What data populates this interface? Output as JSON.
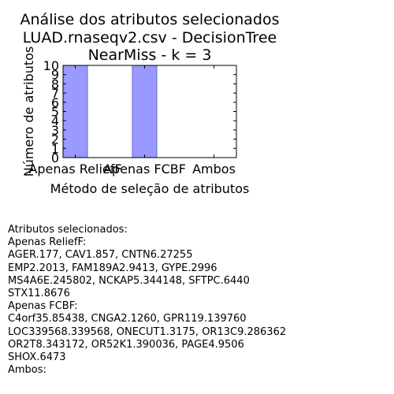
{
  "chart_data": {
    "type": "bar",
    "title": [
      "Análise dos atributos selecionados",
      "LUAD.rnaseqv2.csv - DecisionTree",
      "NearMiss - k = 3"
    ],
    "xlabel": "Método de seleção de atributos",
    "ylabel": "Número de atributos",
    "categories": [
      "Apenas ReliefF",
      "Apenas FCBF",
      "Ambos"
    ],
    "values": [
      10,
      10,
      0
    ],
    "ylim": [
      0,
      10
    ],
    "yticks": [
      0,
      1,
      2,
      3,
      4,
      5,
      6,
      7,
      8,
      9,
      10
    ],
    "bar_color": "#9999ff",
    "bar_edge": "#6666cc",
    "grid": false
  },
  "info_lines": [
    "Atributos selecionados:",
    "Apenas ReliefF:",
    "AGER.177, CAV1.857, CNTN6.27255",
    "EMP2.2013, FAM189A2.9413, GYPE.2996",
    "MS4A6E.245802, NCKAP5.344148, SFTPC.6440",
    "STX11.8676",
    "Apenas FCBF:",
    "C4orf35.85438, CNGA2.1260, GPR119.139760",
    "LOC339568.339568, ONECUT1.3175, OR13C9.286362",
    "OR2T8.343172, OR52K1.390036, PAGE4.9506",
    "SHOX.6473",
    "Ambos:"
  ]
}
